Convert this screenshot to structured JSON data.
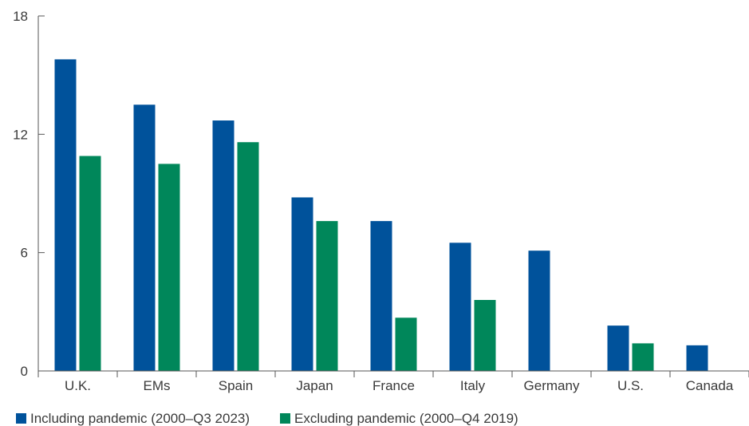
{
  "chart_data": {
    "type": "bar",
    "title": "",
    "xlabel": "",
    "ylabel": "",
    "categories": [
      "U.K.",
      "EMs",
      "Spain",
      "Japan",
      "France",
      "Italy",
      "Germany",
      "U.S.",
      "Canada"
    ],
    "series": [
      {
        "name": "Including pandemic (2000–Q3 2023)",
        "color": "#00529b",
        "values": [
          15.8,
          13.5,
          12.7,
          8.8,
          7.6,
          6.5,
          6.1,
          2.3,
          1.3
        ]
      },
      {
        "name": "Excluding pandemic (2000–Q4 2019)",
        "color": "#00875a",
        "values": [
          10.9,
          10.5,
          11.6,
          7.6,
          2.7,
          3.6,
          null,
          1.4,
          null
        ]
      }
    ],
    "ylim": [
      0,
      18
    ],
    "yticks": [
      "0",
      "6",
      "12",
      "18"
    ],
    "grid": false,
    "legend": "bottom-left"
  }
}
